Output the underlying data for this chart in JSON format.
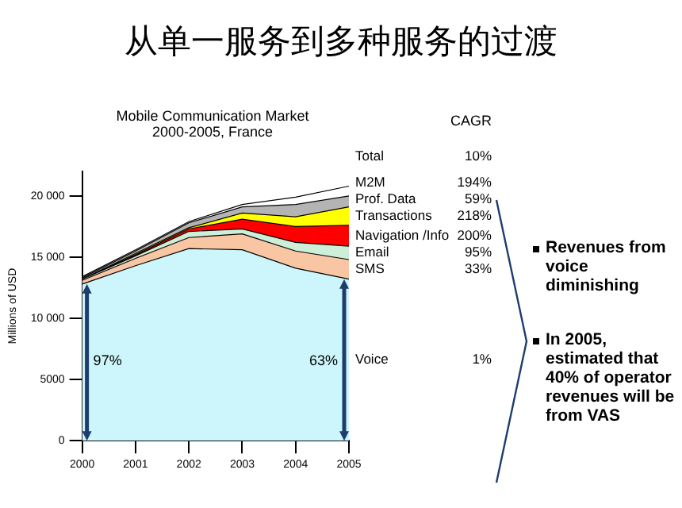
{
  "chart_data": {
    "type": "area",
    "stacked": true,
    "title": "从单一服务到多种服务的过渡",
    "subtitle": "Mobile Communication Market 2000-2005, France",
    "ylabel": "Millions of USD",
    "categories": [
      "2000",
      "2001",
      "2002",
      "2003",
      "2004",
      "2005"
    ],
    "ylim": [
      0,
      22000
    ],
    "yticks": [
      {
        "value": 0,
        "label": "0"
      },
      {
        "value": 5000,
        "label": "5000"
      },
      {
        "value": 10000,
        "label": "10 000"
      },
      {
        "value": 15000,
        "label": "15 000"
      },
      {
        "value": 20000,
        "label": "20 000"
      }
    ],
    "series": [
      {
        "name": "Voice",
        "color": "#ccf6fb",
        "values": [
          12800,
          14300,
          15700,
          15600,
          14100,
          13200
        ]
      },
      {
        "name": "SMS",
        "color": "#f9c6a4",
        "values": [
          300,
          600,
          900,
          1300,
          1400,
          1600
        ]
      },
      {
        "name": "Email",
        "color": "#cdefd8",
        "values": [
          100,
          200,
          500,
          400,
          700,
          1100
        ]
      },
      {
        "name": "Navigation /Info",
        "color": "#ff0000",
        "values": [
          0,
          100,
          200,
          800,
          1300,
          1700
        ]
      },
      {
        "name": "Transactions",
        "color": "#ffff00",
        "values": [
          0,
          100,
          100,
          500,
          800,
          1500
        ]
      },
      {
        "name": "Prof. Data",
        "color": "#b4b4b4",
        "values": [
          100,
          200,
          400,
          500,
          1000,
          900
        ]
      },
      {
        "name": "M2M",
        "color": "#ffffff",
        "values": [
          100,
          100,
          100,
          200,
          600,
          800
        ]
      }
    ],
    "annotations": [
      {
        "text": "97%",
        "x": "2000",
        "y": 6500
      },
      {
        "text": "63%",
        "x": "2005",
        "y": 6500
      },
      "CAGR",
      "Total",
      "10%",
      "194%",
      "59%",
      "218%",
      "200%",
      "95%",
      "33%",
      "1%",
      "Revenues from voice diminishing",
      "In 2005, estimated that 40% of operator revenues will be from VAS"
    ]
  }
}
